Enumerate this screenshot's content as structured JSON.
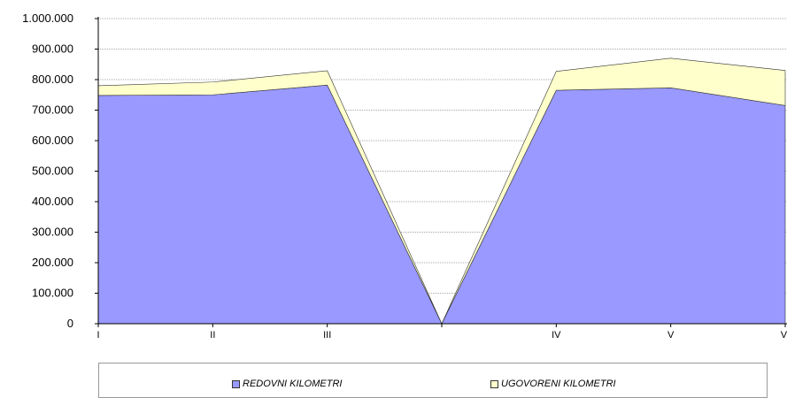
{
  "chart_data": {
    "type": "area",
    "stacked": true,
    "categories": [
      "I",
      "II",
      "III",
      "",
      "IV",
      "V",
      "VI"
    ],
    "series": [
      {
        "name": "REDOVNI KILOMETRI",
        "values": [
          748000,
          750000,
          782000,
          0,
          765000,
          773000,
          715000
        ],
        "color": "#9999ff"
      },
      {
        "name": "UGOVORENI KILOMETRI",
        "values": [
          32000,
          42000,
          47000,
          0,
          62000,
          97000,
          115000
        ],
        "color": "#ffffcc"
      }
    ],
    "ylim": [
      0,
      1000000
    ],
    "yticks": [
      "0",
      "100.000",
      "200.000",
      "300.000",
      "400.000",
      "500.000",
      "600.000",
      "700.000",
      "800.000",
      "900.000",
      "1.000.000"
    ],
    "grid": "horizontal",
    "legend_position": "bottom"
  }
}
